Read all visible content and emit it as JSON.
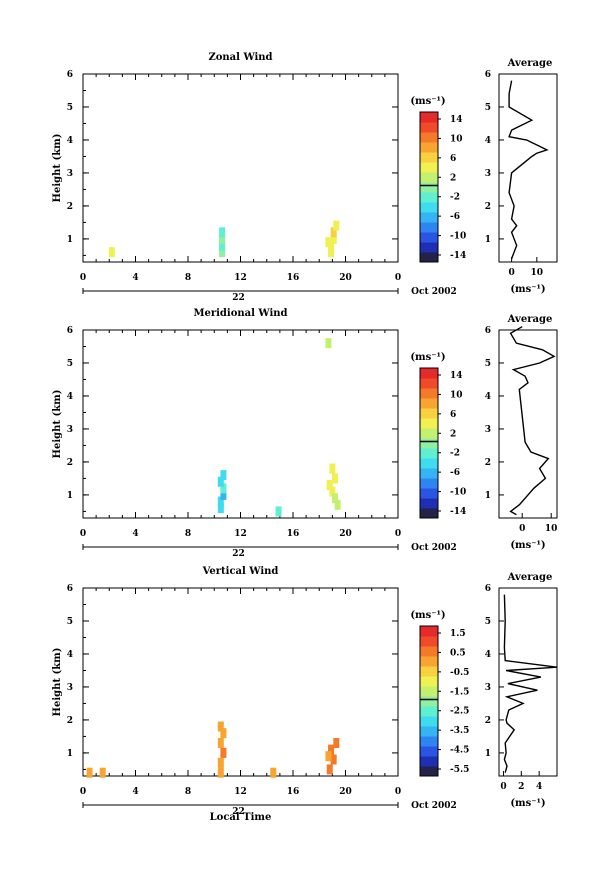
{
  "colors": {
    "scale": [
      "#23234a",
      "#1f2fb4",
      "#2a55e2",
      "#2e84f0",
      "#34b4f2",
      "#3fdcf0",
      "#5ef0d0",
      "#8ef0a0",
      "#c4f070",
      "#f0f050",
      "#f8d040",
      "#f8a430",
      "#f47a2a",
      "#f04a2a",
      "#e42a2a"
    ]
  },
  "x_axis": {
    "ticks": [
      "0",
      "4",
      "8",
      "12",
      "16",
      "20",
      "0"
    ],
    "date_mark": "22",
    "date_label": "Oct 2002",
    "xlabel": "Local Time"
  },
  "panels": [
    {
      "title": "Zonal Wind",
      "ylabel": "Height (km)",
      "y_ticks": [
        "1",
        "2",
        "3",
        "4",
        "5",
        "6"
      ],
      "colorbar": {
        "unit": "(ms⁻¹)",
        "ticks": [
          "14",
          "10",
          "6",
          "2",
          "-2",
          "-6",
          "-10",
          "-14"
        ]
      },
      "profile": {
        "title": "Average",
        "xlabel": "(ms⁻¹)",
        "x_ticks": [
          "0",
          "10"
        ],
        "y_ticks": [
          "1",
          "2",
          "3",
          "4",
          "5",
          "6"
        ]
      }
    },
    {
      "title": "Meridional Wind",
      "ylabel": "Height (km)",
      "y_ticks": [
        "1",
        "2",
        "3",
        "4",
        "5",
        "6"
      ],
      "colorbar": {
        "unit": "(ms⁻¹)",
        "ticks": [
          "14",
          "10",
          "6",
          "2",
          "-2",
          "-6",
          "-10",
          "-14"
        ]
      },
      "profile": {
        "title": "Average",
        "xlabel": "(ms⁻¹)",
        "x_ticks": [
          "0",
          "10"
        ],
        "y_ticks": [
          "1",
          "2",
          "3",
          "4",
          "5",
          "6"
        ]
      }
    },
    {
      "title": "Vertical Wind",
      "ylabel": "Height (km)",
      "y_ticks": [
        "1",
        "2",
        "3",
        "4",
        "5",
        "6"
      ],
      "colorbar": {
        "unit": "(ms⁻¹)",
        "ticks": [
          "1.5",
          "0.5",
          "-0.5",
          "-1.5",
          "-2.5",
          "-3.5",
          "-4.5",
          "-5.5"
        ]
      },
      "profile": {
        "title": "Average",
        "xlabel": "(ms⁻¹)",
        "x_ticks": [
          "0",
          "2",
          "4"
        ],
        "y_ticks": [
          "1",
          "2",
          "3",
          "4",
          "5",
          "6"
        ]
      }
    }
  ],
  "chart_data": [
    {
      "type": "heatmap",
      "title": "Zonal Wind",
      "xlabel": "",
      "ylabel": "Height (km)",
      "xlim": [
        0,
        24
      ],
      "ylim": [
        0.3,
        6
      ],
      "clim": [
        -16,
        16
      ],
      "cells": [
        {
          "x": 2.2,
          "y": 0.6,
          "v": 5
        },
        {
          "x": 10.6,
          "y": 0.6,
          "v": -1
        },
        {
          "x": 10.6,
          "y": 0.8,
          "v": -2
        },
        {
          "x": 10.6,
          "y": 1.0,
          "v": -1
        },
        {
          "x": 10.6,
          "y": 1.2,
          "v": -2
        },
        {
          "x": 18.9,
          "y": 0.6,
          "v": 4
        },
        {
          "x": 18.9,
          "y": 0.8,
          "v": 5
        },
        {
          "x": 19.1,
          "y": 1.0,
          "v": 4
        },
        {
          "x": 19.1,
          "y": 1.2,
          "v": 6
        },
        {
          "x": 19.3,
          "y": 1.4,
          "v": 5
        },
        {
          "x": 18.7,
          "y": 0.9,
          "v": 4
        }
      ],
      "profile": {
        "x": [
          0,
          1,
          2,
          1,
          0,
          2,
          0,
          1,
          -1,
          0,
          8,
          10,
          14,
          6,
          -1,
          0,
          8,
          -1,
          -1,
          0
        ],
        "y": [
          0.4,
          0.6,
          0.8,
          1.0,
          1.2,
          1.4,
          1.6,
          2.0,
          2.4,
          3.0,
          3.5,
          3.6,
          3.7,
          4.0,
          4.1,
          4.3,
          4.6,
          5.0,
          5.4,
          5.8
        ],
        "xlim": [
          -5,
          18
        ]
      }
    },
    {
      "type": "heatmap",
      "title": "Meridional Wind",
      "xlabel": "",
      "ylabel": "Height (km)",
      "xlim": [
        0,
        24
      ],
      "ylim": [
        0.3,
        6
      ],
      "clim": [
        -16,
        16
      ],
      "cells": [
        {
          "x": 10.5,
          "y": 0.6,
          "v": -4
        },
        {
          "x": 10.5,
          "y": 0.8,
          "v": -5
        },
        {
          "x": 10.7,
          "y": 1.0,
          "v": -6
        },
        {
          "x": 10.7,
          "y": 1.2,
          "v": -3
        },
        {
          "x": 10.5,
          "y": 1.4,
          "v": -4
        },
        {
          "x": 10.7,
          "y": 1.6,
          "v": -5
        },
        {
          "x": 14.9,
          "y": 0.5,
          "v": -3
        },
        {
          "x": 18.8,
          "y": 1.3,
          "v": 4
        },
        {
          "x": 19.0,
          "y": 1.1,
          "v": 5
        },
        {
          "x": 19.2,
          "y": 0.9,
          "v": 3
        },
        {
          "x": 19.4,
          "y": 0.7,
          "v": 2
        },
        {
          "x": 19.2,
          "y": 1.5,
          "v": 5
        },
        {
          "x": 19.0,
          "y": 1.8,
          "v": 4
        },
        {
          "x": 18.7,
          "y": 5.6,
          "v": 3
        }
      ],
      "profile": {
        "x": [
          -2,
          -4,
          -1,
          2,
          4,
          8,
          6,
          9,
          3,
          1,
          -1,
          2,
          1,
          -3,
          6,
          11,
          7,
          -2,
          -4,
          0
        ],
        "y": [
          0.4,
          0.5,
          0.7,
          1.0,
          1.2,
          1.5,
          1.8,
          2.1,
          2.3,
          2.6,
          4.2,
          4.4,
          4.6,
          4.8,
          5.0,
          5.2,
          5.4,
          5.6,
          5.9,
          6.1
        ],
        "xlim": [
          -8,
          12
        ]
      }
    },
    {
      "type": "heatmap",
      "title": "Vertical Wind",
      "xlabel": "Local Time",
      "ylabel": "Height (km)",
      "xlim": [
        0,
        24
      ],
      "ylim": [
        0.3,
        6
      ],
      "clim": [
        -6,
        2
      ],
      "cells": [
        {
          "x": 0.5,
          "y": 0.4,
          "v": 0.2
        },
        {
          "x": 1.5,
          "y": 0.4,
          "v": 0.2
        },
        {
          "x": 10.5,
          "y": 0.4,
          "v": 0.3
        },
        {
          "x": 10.5,
          "y": 0.7,
          "v": 0.2
        },
        {
          "x": 10.7,
          "y": 1.0,
          "v": 0.4
        },
        {
          "x": 10.5,
          "y": 1.3,
          "v": 0.3
        },
        {
          "x": 10.7,
          "y": 1.6,
          "v": 0.2
        },
        {
          "x": 10.5,
          "y": 1.8,
          "v": 0.3
        },
        {
          "x": 14.5,
          "y": 0.4,
          "v": 0.2
        },
        {
          "x": 18.8,
          "y": 0.5,
          "v": 0.4
        },
        {
          "x": 19.1,
          "y": 0.8,
          "v": 0.6
        },
        {
          "x": 18.9,
          "y": 1.1,
          "v": 0.5
        },
        {
          "x": 19.3,
          "y": 1.3,
          "v": 0.7
        },
        {
          "x": 18.7,
          "y": 0.9,
          "v": 0.3
        }
      ],
      "profile": {
        "x": [
          0.2,
          0.4,
          0.1,
          0.3,
          0.2,
          1.2,
          0.4,
          0.3,
          0.6,
          2.2,
          0.4,
          3.8,
          0.5,
          4.2,
          0.3,
          6.0,
          0.2,
          0.1,
          0.2,
          0.1
        ],
        "y": [
          0.4,
          0.6,
          0.8,
          1.0,
          1.3,
          1.7,
          1.9,
          2.0,
          2.3,
          2.5,
          2.7,
          2.9,
          3.1,
          3.3,
          3.5,
          3.6,
          3.8,
          4.2,
          5.0,
          5.8
        ],
        "xlim": [
          -0.5,
          6
        ]
      }
    }
  ]
}
